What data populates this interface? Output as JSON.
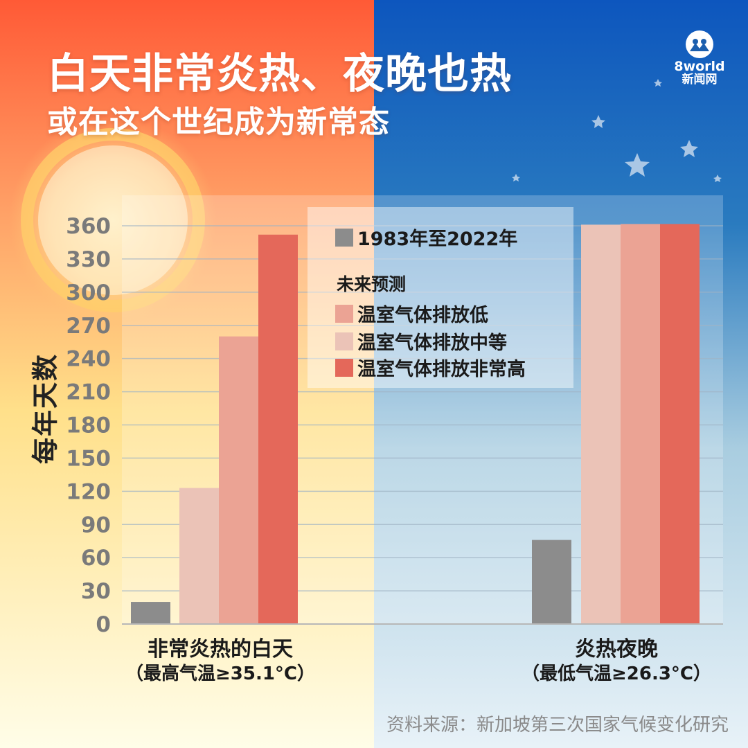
{
  "title": "白天非常炎热、夜晚也热",
  "subtitle": "或在这个世纪成为新常态",
  "logo": {
    "name": "8world",
    "sub": "新闻网"
  },
  "legend": {
    "historical": "1983年至2022年",
    "future_heading": "未来预测",
    "low": "温室气体排放低",
    "medium": "温室气体排放中等",
    "high": "温室气体排放非常高"
  },
  "groups": [
    {
      "title": "非常炎热的白天",
      "condition": "（最高气温≥35.1°C）"
    },
    {
      "title": "炎热夜晚",
      "condition": "（最低气温≥26.3°C）"
    }
  ],
  "source": "资料来源：新加坡第三次国家气候变化研究",
  "colors": {
    "historical": "#8c8c8c",
    "medium": "#ebc3b7",
    "low": "#eba394",
    "high": "#e4685a",
    "warm_background": "#ff6a38",
    "night_background": "#1c5fae"
  },
  "chart_data": {
    "type": "bar",
    "ylabel": "每年天数",
    "ylim": [
      0,
      360
    ],
    "yticks": [
      0,
      30,
      60,
      90,
      120,
      150,
      180,
      210,
      240,
      270,
      300,
      330,
      360
    ],
    "grid": true,
    "legend_position": "top-center",
    "categories": [
      "非常炎热的白天（最高气温≥35.1°C）",
      "炎热夜晚（最低气温≥26.3°C）"
    ],
    "series": [
      {
        "name": "1983年至2022年",
        "color": "#8c8c8c",
        "values": [
          20,
          76
        ]
      },
      {
        "name": "温室气体排放中等",
        "color": "#ebc3b7",
        "values": [
          123,
          361
        ]
      },
      {
        "name": "温室气体排放低",
        "color": "#eba394",
        "values": [
          260,
          365
        ]
      },
      {
        "name": "温室气体排放非常高",
        "color": "#e4685a",
        "values": [
          352,
          365
        ]
      }
    ]
  }
}
